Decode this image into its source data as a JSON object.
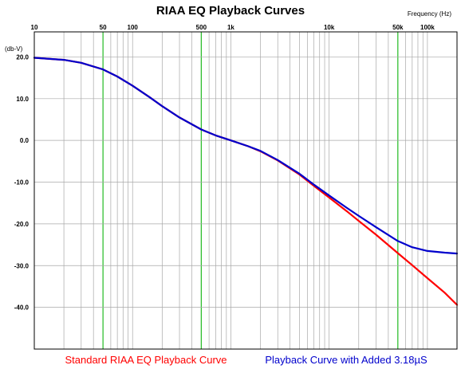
{
  "chart_data": {
    "type": "line",
    "title": "RIAA EQ Playback Curves",
    "xlabel": "Frequency   (Hz)",
    "ylabel": "(db-V)",
    "x_scale": "log",
    "xlim": [
      10,
      200000
    ],
    "ylim": [
      -50,
      26
    ],
    "x_tick_labels": [
      {
        "value": 10,
        "label": "10"
      },
      {
        "value": 50,
        "label": "50"
      },
      {
        "value": 100,
        "label": "100"
      },
      {
        "value": 500,
        "label": "500"
      },
      {
        "value": 1000,
        "label": "1k"
      },
      {
        "value": 10000,
        "label": "10k"
      },
      {
        "value": 50000,
        "label": "50k"
      },
      {
        "value": 100000,
        "label": "100k"
      }
    ],
    "y_tick_labels": [
      {
        "value": 20,
        "label": "20.0"
      },
      {
        "value": 10,
        "label": "10.0"
      },
      {
        "value": 0,
        "label": "0.0"
      },
      {
        "value": -10,
        "label": "-10.0"
      },
      {
        "value": -20,
        "label": "-20.0"
      },
      {
        "value": -30,
        "label": "-30.0"
      },
      {
        "value": -40,
        "label": "-40.0"
      }
    ],
    "highlight_gridlines": [
      50,
      500,
      50000
    ],
    "grid": true,
    "legend_position": "bottom",
    "series": [
      {
        "name": "Standard RIAA EQ Playback Curve",
        "color": "#ff0000",
        "x": [
          10,
          20,
          30,
          50,
          70,
          100,
          150,
          200,
          300,
          500,
          700,
          1000,
          1500,
          2000,
          3000,
          5000,
          7000,
          10000,
          15000,
          20000,
          30000,
          50000,
          70000,
          100000,
          150000,
          200000
        ],
        "y": [
          19.8,
          19.3,
          18.6,
          17.0,
          15.3,
          13.1,
          10.3,
          8.2,
          5.5,
          2.6,
          1.2,
          0.0,
          -1.4,
          -2.6,
          -4.8,
          -8.2,
          -10.9,
          -13.7,
          -16.9,
          -19.3,
          -22.6,
          -27.0,
          -29.9,
          -33.0,
          -36.5,
          -39.4
        ]
      },
      {
        "name": "Playback Curve with Added 3.18µS",
        "color": "#0000cc",
        "x": [
          10,
          20,
          30,
          50,
          70,
          100,
          150,
          200,
          300,
          500,
          700,
          1000,
          1500,
          2000,
          3000,
          5000,
          7000,
          10000,
          15000,
          20000,
          30000,
          50000,
          70000,
          100000,
          150000,
          200000
        ],
        "y": [
          19.8,
          19.3,
          18.6,
          17.0,
          15.3,
          13.1,
          10.3,
          8.2,
          5.5,
          2.6,
          1.2,
          0.0,
          -1.4,
          -2.5,
          -4.7,
          -8.0,
          -10.6,
          -13.2,
          -16.1,
          -18.1,
          -20.8,
          -24.1,
          -25.6,
          -26.5,
          -26.9,
          -27.1
        ]
      }
    ]
  }
}
